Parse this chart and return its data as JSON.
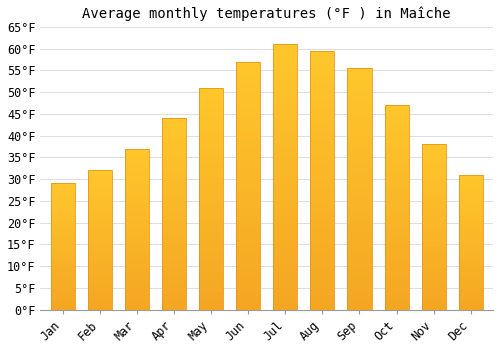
{
  "title": "Average monthly temperatures (°F ) in Maîche",
  "months": [
    "Jan",
    "Feb",
    "Mar",
    "Apr",
    "May",
    "Jun",
    "Jul",
    "Aug",
    "Sep",
    "Oct",
    "Nov",
    "Dec"
  ],
  "values": [
    29.0,
    32.0,
    37.0,
    44.0,
    51.0,
    57.0,
    61.0,
    59.5,
    55.5,
    47.0,
    38.0,
    31.0
  ],
  "bar_color_top": "#FFC72C",
  "bar_color_bottom": "#F4A623",
  "bar_edge_color": "#E8951A",
  "background_color": "#FFFFFF",
  "grid_color": "#DDDDDD",
  "ylim": [
    0,
    65
  ],
  "yticks": [
    0,
    5,
    10,
    15,
    20,
    25,
    30,
    35,
    40,
    45,
    50,
    55,
    60,
    65
  ],
  "title_fontsize": 10,
  "tick_fontsize": 8.5,
  "tick_font": "monospace"
}
